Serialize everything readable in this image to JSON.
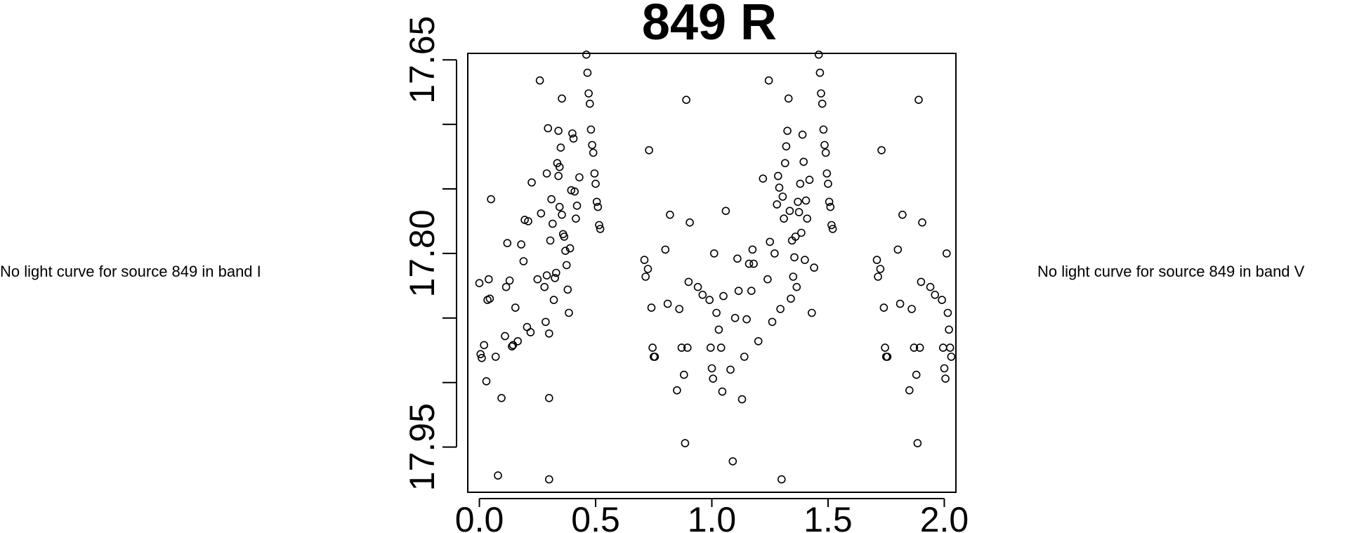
{
  "notes": {
    "left": "No light curve for source 849 in band I",
    "right": "No light curve for source 849 in band V"
  },
  "chart_data": {
    "type": "scatter",
    "title": "849 R",
    "xlabel": "",
    "ylabel": "",
    "xlim": [
      -0.05,
      2.05
    ],
    "ylim": [
      17.985,
      17.645
    ],
    "y_inverted": true,
    "grid": false,
    "legend": "none",
    "marker": "open-circle",
    "color": "#000000",
    "x_ticks": [
      0.0,
      0.5,
      1.0,
      1.5,
      2.0
    ],
    "x_tick_labels": [
      "0.0",
      "0.5",
      "1.0",
      "1.5",
      "2.0"
    ],
    "y_ticks": [
      17.65,
      17.7,
      17.75,
      17.8,
      17.85,
      17.9,
      17.95
    ],
    "y_tick_labels": [
      "17.65",
      "",
      "",
      "17.80",
      "",
      "",
      "17.95"
    ],
    "points": [
      [
        0.0,
        17.823
      ],
      [
        0.005,
        17.878
      ],
      [
        0.01,
        17.881
      ],
      [
        0.02,
        17.871
      ],
      [
        0.03,
        17.899
      ],
      [
        0.035,
        17.836
      ],
      [
        0.04,
        17.82
      ],
      [
        0.045,
        17.835
      ],
      [
        0.05,
        17.758
      ],
      [
        0.07,
        17.88
      ],
      [
        0.08,
        17.972
      ],
      [
        0.095,
        17.912
      ],
      [
        0.11,
        17.864
      ],
      [
        0.115,
        17.826
      ],
      [
        0.12,
        17.792
      ],
      [
        0.13,
        17.821
      ],
      [
        0.14,
        17.872
      ],
      [
        0.145,
        17.871
      ],
      [
        0.155,
        17.842
      ],
      [
        0.165,
        17.868
      ],
      [
        0.18,
        17.793
      ],
      [
        0.19,
        17.806
      ],
      [
        0.195,
        17.774
      ],
      [
        0.205,
        17.857
      ],
      [
        0.21,
        17.775
      ],
      [
        0.22,
        17.861
      ],
      [
        0.225,
        17.745
      ],
      [
        0.25,
        17.82
      ],
      [
        0.26,
        17.666
      ],
      [
        0.265,
        17.769
      ],
      [
        0.28,
        17.826
      ],
      [
        0.285,
        17.853
      ],
      [
        0.29,
        17.817
      ],
      [
        0.29,
        17.738
      ],
      [
        0.295,
        17.703
      ],
      [
        0.3,
        17.862
      ],
      [
        0.3,
        17.912
      ],
      [
        0.3,
        17.975
      ],
      [
        0.305,
        17.79
      ],
      [
        0.31,
        17.758
      ],
      [
        0.315,
        17.777
      ],
      [
        0.32,
        17.836
      ],
      [
        0.325,
        17.819
      ],
      [
        0.33,
        17.815
      ],
      [
        0.335,
        17.73
      ],
      [
        0.34,
        17.705
      ],
      [
        0.34,
        17.74
      ],
      [
        0.345,
        17.733
      ],
      [
        0.345,
        17.764
      ],
      [
        0.35,
        17.718
      ],
      [
        0.355,
        17.68
      ],
      [
        0.355,
        17.77
      ],
      [
        0.36,
        17.785
      ],
      [
        0.365,
        17.787
      ],
      [
        0.37,
        17.798
      ],
      [
        0.375,
        17.809
      ],
      [
        0.38,
        17.828
      ],
      [
        0.385,
        17.846
      ],
      [
        0.39,
        17.796
      ],
      [
        0.395,
        17.751
      ],
      [
        0.4,
        17.707
      ],
      [
        0.405,
        17.711
      ],
      [
        0.41,
        17.752
      ],
      [
        0.415,
        17.773
      ],
      [
        0.42,
        17.763
      ],
      [
        0.43,
        17.741
      ],
      [
        0.46,
        17.646
      ],
      [
        0.465,
        17.66
      ],
      [
        0.47,
        17.676
      ],
      [
        0.475,
        17.684
      ],
      [
        0.48,
        17.704
      ],
      [
        0.485,
        17.716
      ],
      [
        0.49,
        17.722
      ],
      [
        0.495,
        17.738
      ],
      [
        0.5,
        17.746
      ],
      [
        0.505,
        17.76
      ],
      [
        0.51,
        17.764
      ],
      [
        0.515,
        17.778
      ],
      [
        0.52,
        17.781
      ],
      [
        0.71,
        17.805
      ],
      [
        0.715,
        17.818
      ],
      [
        0.725,
        17.812
      ],
      [
        0.73,
        17.72
      ],
      [
        0.74,
        17.842
      ],
      [
        0.745,
        17.873
      ],
      [
        0.75,
        17.88
      ],
      [
        0.755,
        17.88
      ],
      [
        0.8,
        17.797
      ],
      [
        0.81,
        17.839
      ],
      [
        0.82,
        17.77
      ],
      [
        0.85,
        17.906
      ],
      [
        0.86,
        17.843
      ],
      [
        0.87,
        17.873
      ],
      [
        0.88,
        17.894
      ],
      [
        0.885,
        17.947
      ],
      [
        0.89,
        17.681
      ],
      [
        0.895,
        17.873
      ],
      [
        0.9,
        17.822
      ],
      [
        0.905,
        17.776
      ],
      [
        0.94,
        17.826
      ],
      [
        0.96,
        17.832
      ],
      [
        0.99,
        17.836
      ],
      [
        0.995,
        17.873
      ],
      [
        1.0,
        17.889
      ],
      [
        1.005,
        17.897
      ],
      [
        1.01,
        17.8
      ],
      [
        1.02,
        17.846
      ],
      [
        1.03,
        17.859
      ],
      [
        1.04,
        17.873
      ],
      [
        1.045,
        17.907
      ],
      [
        1.05,
        17.833
      ],
      [
        1.06,
        17.767
      ],
      [
        1.08,
        17.89
      ],
      [
        1.09,
        17.961
      ],
      [
        1.1,
        17.85
      ],
      [
        1.11,
        17.804
      ],
      [
        1.115,
        17.829
      ],
      [
        1.13,
        17.913
      ],
      [
        1.14,
        17.88
      ],
      [
        1.15,
        17.851
      ],
      [
        1.16,
        17.808
      ],
      [
        1.17,
        17.829
      ],
      [
        1.175,
        17.797
      ],
      [
        1.18,
        17.808
      ],
      [
        1.2,
        17.868
      ],
      [
        1.22,
        17.742
      ],
      [
        1.24,
        17.82
      ],
      [
        1.245,
        17.666
      ],
      [
        1.25,
        17.791
      ],
      [
        1.26,
        17.853
      ],
      [
        1.27,
        17.8
      ],
      [
        1.28,
        17.762
      ],
      [
        1.285,
        17.74
      ],
      [
        1.29,
        17.749
      ],
      [
        1.295,
        17.843
      ],
      [
        1.3,
        17.975
      ],
      [
        1.305,
        17.756
      ],
      [
        1.31,
        17.773
      ],
      [
        1.315,
        17.73
      ],
      [
        1.32,
        17.717
      ],
      [
        1.325,
        17.705
      ],
      [
        1.33,
        17.68
      ],
      [
        1.335,
        17.767
      ],
      [
        1.34,
        17.835
      ],
      [
        1.345,
        17.79
      ],
      [
        1.35,
        17.818
      ],
      [
        1.355,
        17.803
      ],
      [
        1.36,
        17.787
      ],
      [
        1.365,
        17.826
      ],
      [
        1.37,
        17.76
      ],
      [
        1.375,
        17.768
      ],
      [
        1.38,
        17.746
      ],
      [
        1.385,
        17.784
      ],
      [
        1.39,
        17.708
      ],
      [
        1.395,
        17.729
      ],
      [
        1.4,
        17.805
      ],
      [
        1.405,
        17.759
      ],
      [
        1.41,
        17.773
      ],
      [
        1.42,
        17.743
      ],
      [
        1.43,
        17.846
      ],
      [
        1.44,
        17.811
      ],
      [
        1.46,
        17.646
      ],
      [
        1.465,
        17.66
      ],
      [
        1.47,
        17.676
      ],
      [
        1.475,
        17.684
      ],
      [
        1.48,
        17.704
      ],
      [
        1.485,
        17.716
      ],
      [
        1.49,
        17.722
      ],
      [
        1.495,
        17.738
      ],
      [
        1.5,
        17.746
      ],
      [
        1.505,
        17.76
      ],
      [
        1.51,
        17.764
      ],
      [
        1.515,
        17.778
      ],
      [
        1.52,
        17.781
      ],
      [
        1.71,
        17.805
      ],
      [
        1.715,
        17.818
      ],
      [
        1.725,
        17.812
      ],
      [
        1.73,
        17.72
      ],
      [
        1.74,
        17.842
      ],
      [
        1.745,
        17.873
      ],
      [
        1.75,
        17.88
      ],
      [
        1.755,
        17.88
      ],
      [
        1.8,
        17.797
      ],
      [
        1.81,
        17.839
      ],
      [
        1.82,
        17.77
      ],
      [
        1.85,
        17.906
      ],
      [
        1.86,
        17.843
      ],
      [
        1.87,
        17.873
      ],
      [
        1.88,
        17.894
      ],
      [
        1.885,
        17.947
      ],
      [
        1.89,
        17.681
      ],
      [
        1.895,
        17.873
      ],
      [
        1.9,
        17.822
      ],
      [
        1.905,
        17.776
      ],
      [
        1.94,
        17.826
      ],
      [
        1.96,
        17.832
      ],
      [
        1.99,
        17.836
      ],
      [
        1.995,
        17.873
      ],
      [
        2.0,
        17.889
      ],
      [
        2.005,
        17.897
      ],
      [
        2.01,
        17.8
      ],
      [
        2.015,
        17.846
      ],
      [
        2.02,
        17.859
      ],
      [
        2.025,
        17.873
      ],
      [
        2.03,
        17.88
      ]
    ]
  }
}
